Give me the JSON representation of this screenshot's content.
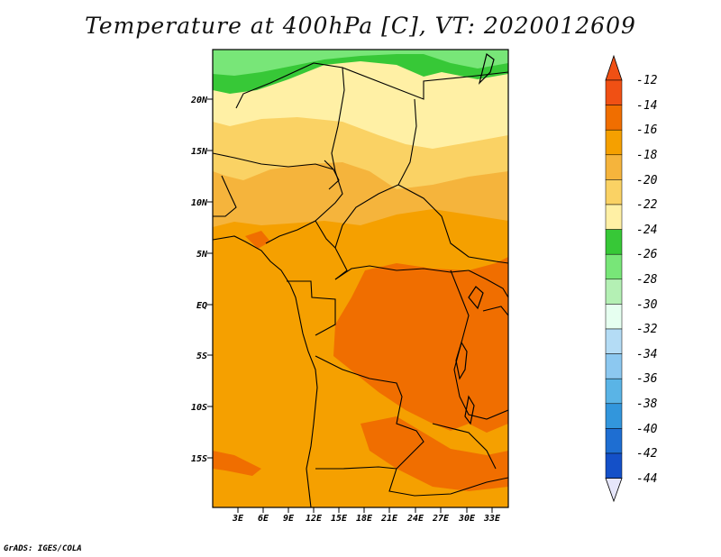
{
  "title": "Temperature at 400hPa [C], VT: 2020012609",
  "credit": "GrADS: IGES/COLA",
  "map": {
    "lat_labels": [
      "20N",
      "15N",
      "10N",
      "5N",
      "EQ",
      "5S",
      "10S",
      "15S"
    ],
    "lon_labels": [
      "3E",
      "6E",
      "9E",
      "12E",
      "15E",
      "18E",
      "21E",
      "24E",
      "27E",
      "30E",
      "33E"
    ]
  },
  "colorbar": {
    "labels": [
      "-12",
      "-14",
      "-16",
      "-18",
      "-20",
      "-22",
      "-24",
      "-26",
      "-28",
      "-30",
      "-32",
      "-34",
      "-36",
      "-38",
      "-40",
      "-42",
      "-44"
    ],
    "colors": [
      "#f05014",
      "#f06e00",
      "#f5a000",
      "#f5b43c",
      "#fad264",
      "#fff0a5",
      "#37c837",
      "#78e678",
      "#b4f0b4",
      "#e6fff0",
      "#b4dcf5",
      "#8cc8f0",
      "#5ab4e6",
      "#3296dc",
      "#1e6ed2",
      "#1450c8",
      "#0a1478"
    ]
  }
}
